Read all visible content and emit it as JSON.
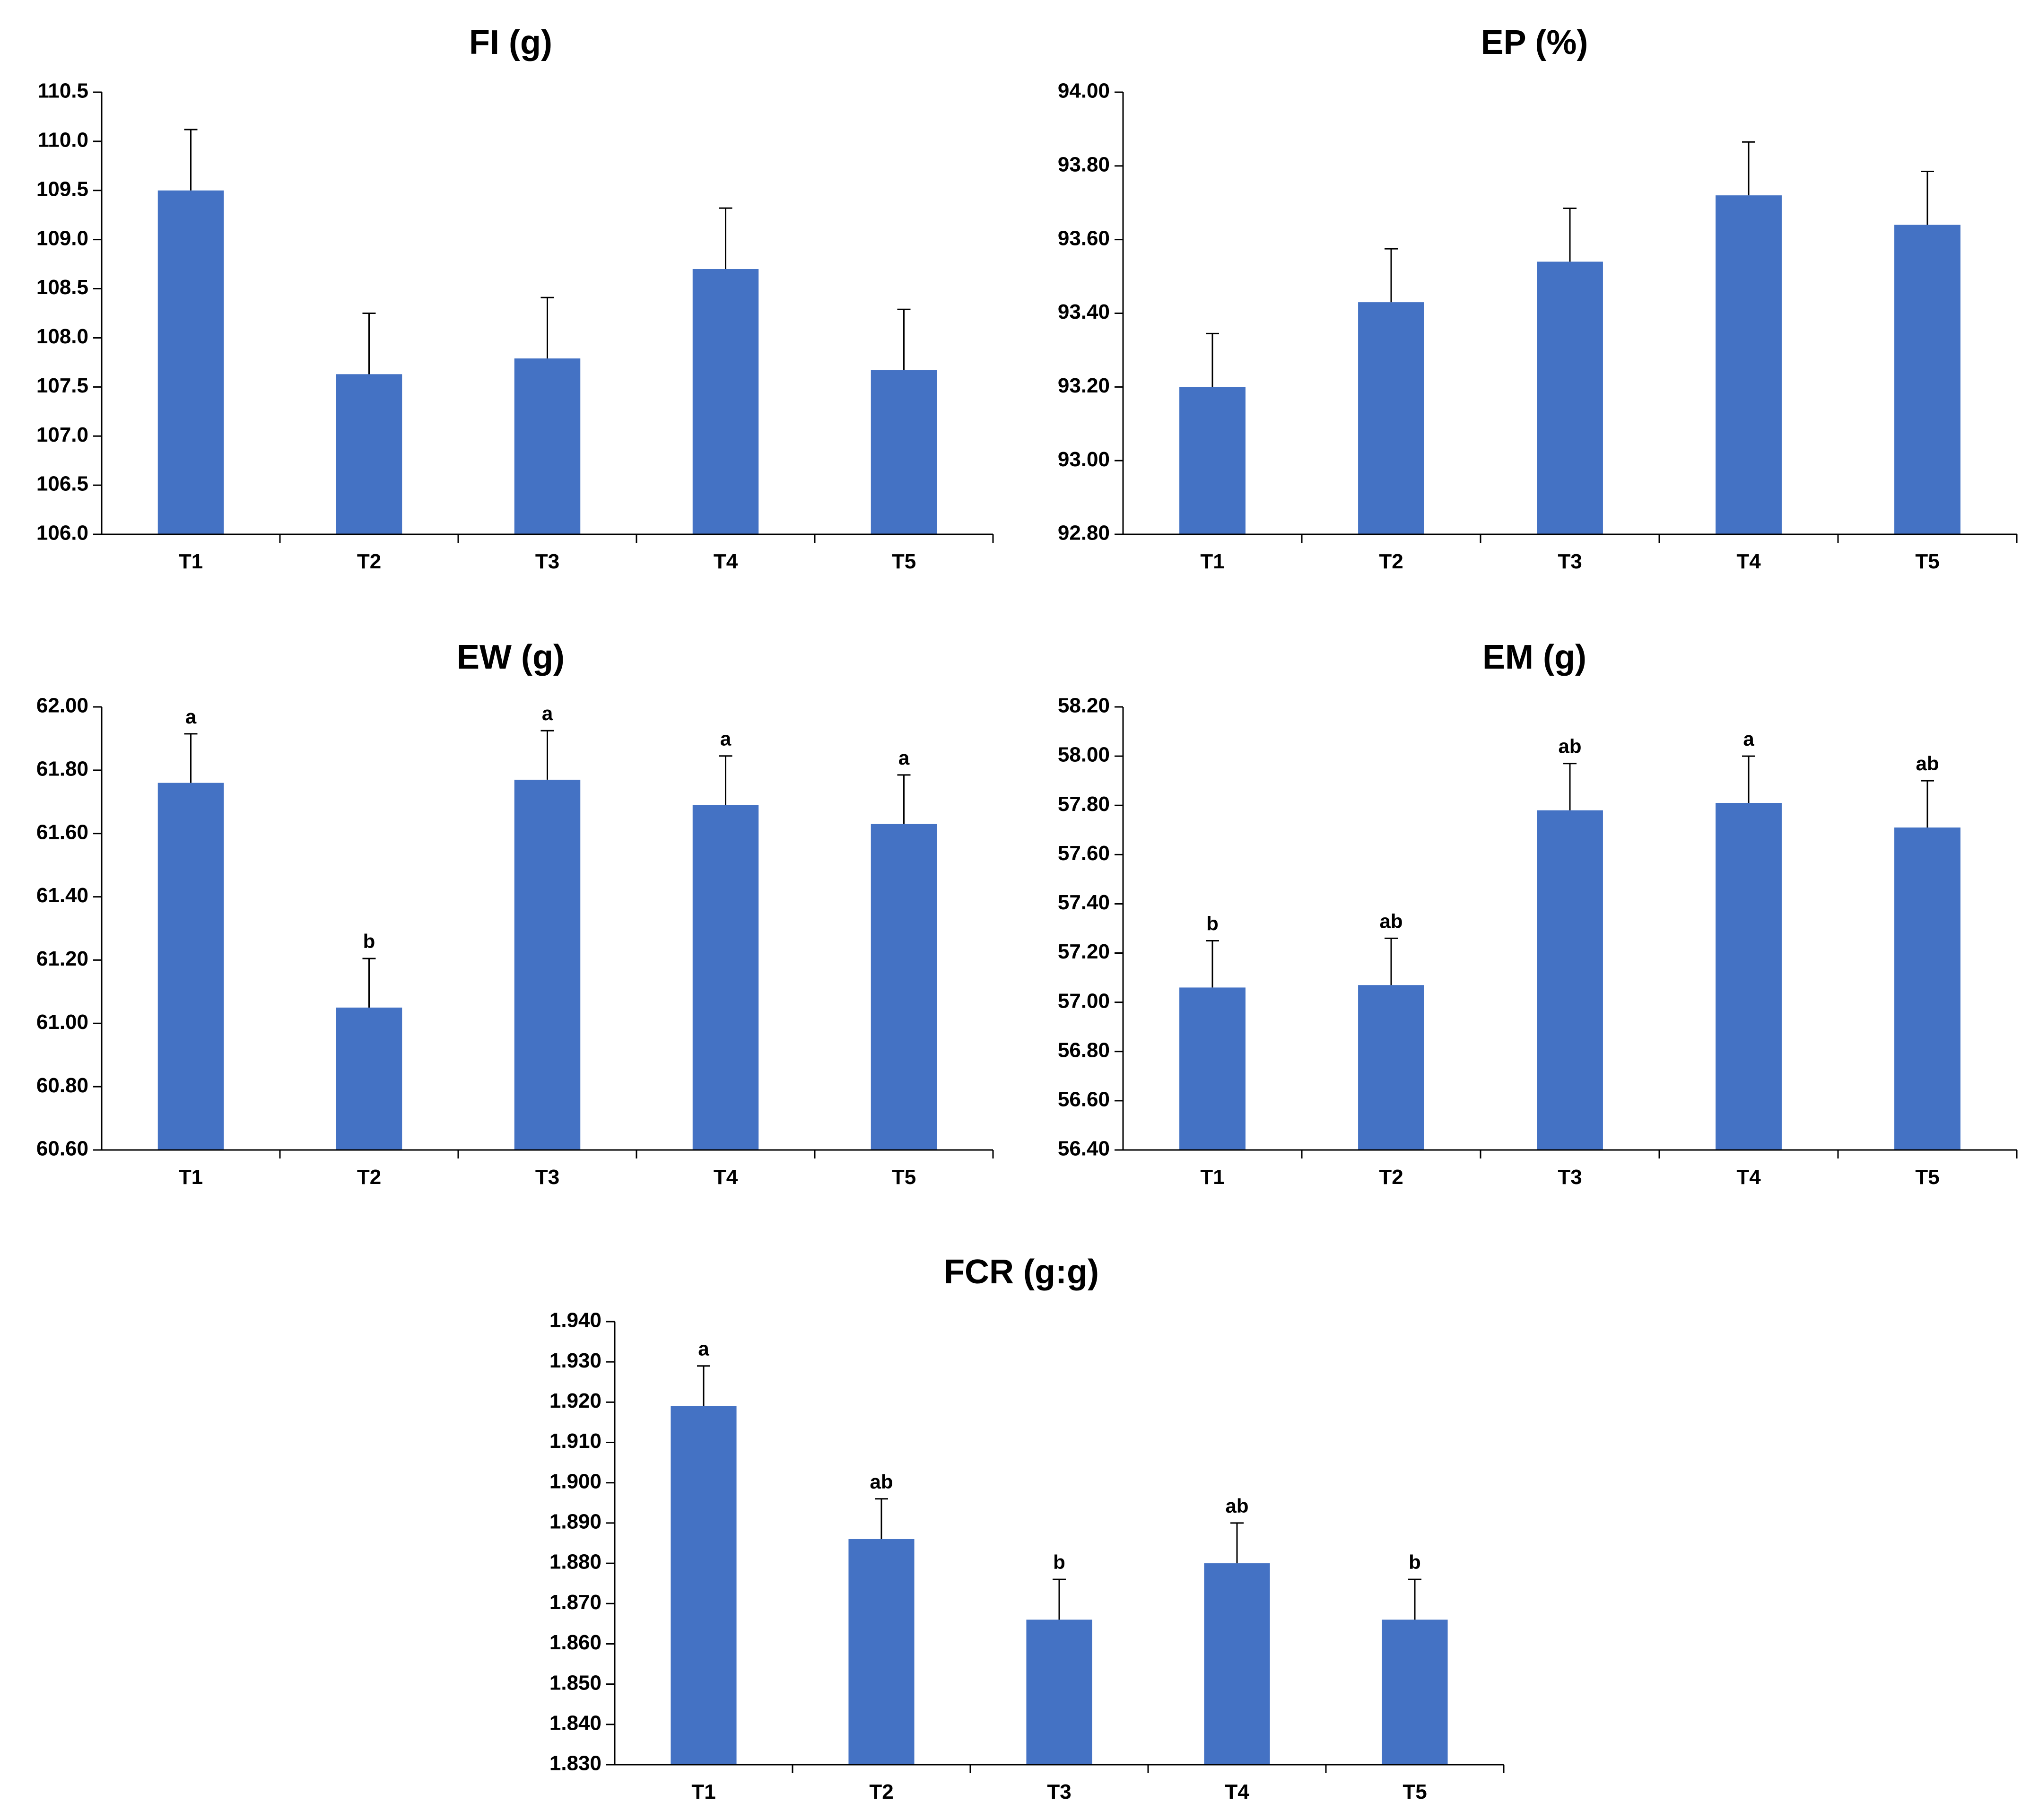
{
  "colors": {
    "bar": "#4472C4",
    "axis": "#000000",
    "text": "#000000"
  },
  "chart_data": [
    {
      "type": "bar",
      "title": "FI (g)",
      "categories": [
        "T1",
        "T2",
        "T3",
        "T4",
        "T5"
      ],
      "values": [
        109.5,
        107.63,
        107.79,
        108.7,
        107.67
      ],
      "errors": [
        0.62,
        0.62,
        0.62,
        0.62,
        0.62
      ],
      "significance": [
        "",
        "",
        "",
        "",
        ""
      ],
      "ylim": [
        106.0,
        110.5
      ],
      "yticks": [
        "106.0",
        "106.5",
        "107.0",
        "107.5",
        "108.0",
        "108.5",
        "109.0",
        "109.5",
        "110.0",
        "110.5"
      ],
      "xlabel": "",
      "ylabel": "",
      "grid": false
    },
    {
      "type": "bar",
      "title": "EP (%)",
      "categories": [
        "T1",
        "T2",
        "T3",
        "T4",
        "T5"
      ],
      "values": [
        93.2,
        93.43,
        93.54,
        93.72,
        93.64
      ],
      "errors": [
        0.145,
        0.145,
        0.145,
        0.145,
        0.145
      ],
      "significance": [
        "",
        "",
        "",
        "",
        ""
      ],
      "ylim": [
        92.8,
        94.0
      ],
      "yticks": [
        "92.80",
        "93.00",
        "93.20",
        "93.40",
        "93.60",
        "93.80",
        "94.00"
      ],
      "xlabel": "",
      "ylabel": "",
      "grid": false
    },
    {
      "type": "bar",
      "title": "EW (g)",
      "categories": [
        "T1",
        "T2",
        "T3",
        "T4",
        "T5"
      ],
      "values": [
        61.76,
        61.05,
        61.77,
        61.69,
        61.63
      ],
      "errors": [
        0.155,
        0.155,
        0.155,
        0.155,
        0.155
      ],
      "significance": [
        "a",
        "b",
        "a",
        "a",
        "a"
      ],
      "ylim": [
        60.6,
        62.0
      ],
      "yticks": [
        "60.60",
        "60.80",
        "61.00",
        "61.20",
        "61.40",
        "61.60",
        "61.80",
        "62.00"
      ],
      "xlabel": "",
      "ylabel": "",
      "grid": false
    },
    {
      "type": "bar",
      "title": "EM (g)",
      "categories": [
        "T1",
        "T2",
        "T3",
        "T4",
        "T5"
      ],
      "values": [
        57.06,
        57.07,
        57.78,
        57.81,
        57.71
      ],
      "errors": [
        0.19,
        0.19,
        0.19,
        0.19,
        0.19
      ],
      "significance": [
        "b",
        "ab",
        "ab",
        "a",
        "ab"
      ],
      "ylim": [
        56.4,
        58.2
      ],
      "yticks": [
        "56.40",
        "56.60",
        "56.80",
        "57.00",
        "57.20",
        "57.40",
        "57.60",
        "57.80",
        "58.00",
        "58.20"
      ],
      "xlabel": "",
      "ylabel": "",
      "grid": false
    },
    {
      "type": "bar",
      "title": "FCR (g:g)",
      "categories": [
        "T1",
        "T2",
        "T3",
        "T4",
        "T5"
      ],
      "values": [
        1.919,
        1.886,
        1.866,
        1.88,
        1.866
      ],
      "errors": [
        0.01,
        0.01,
        0.01,
        0.01,
        0.01
      ],
      "significance": [
        "a",
        "ab",
        "b",
        "ab",
        "b"
      ],
      "ylim": [
        1.83,
        1.94
      ],
      "yticks": [
        "1.830",
        "1.840",
        "1.850",
        "1.860",
        "1.870",
        "1.880",
        "1.890",
        "1.900",
        "1.910",
        "1.920",
        "1.930",
        "1.940"
      ],
      "xlabel": "",
      "ylabel": "",
      "grid": false
    }
  ]
}
